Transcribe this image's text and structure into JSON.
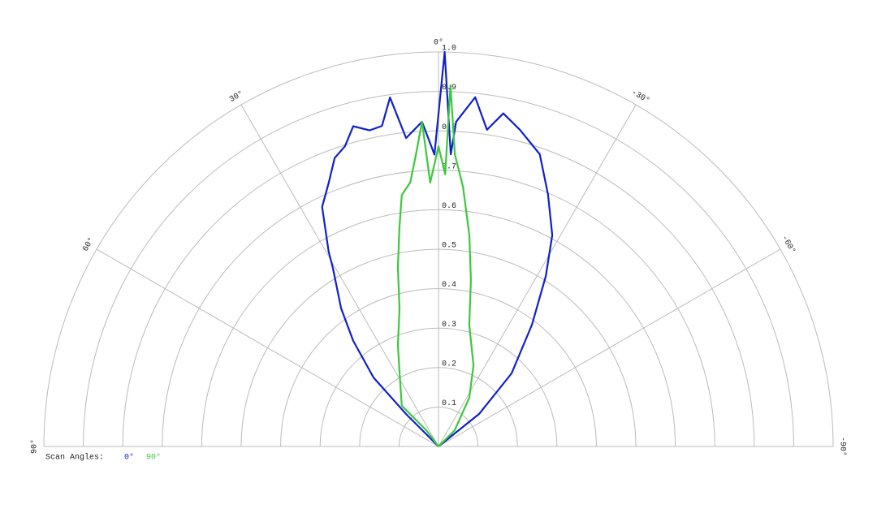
{
  "chart_data": {
    "type": "polar",
    "legend_title": "Scan Angles:",
    "rlim": [
      0,
      1
    ],
    "rticks": [
      0.1,
      0.2,
      0.3,
      0.4,
      0.5,
      0.6,
      0.7,
      0.8,
      0.9,
      {
        "value": 1,
        "label": "1.0"
      }
    ],
    "thetalim": [
      90,
      -90
    ],
    "thetaticks": [
      {
        "value": 90,
        "label": "90°"
      },
      {
        "value": 60,
        "label": "60°"
      },
      {
        "value": 30,
        "label": "30°"
      },
      {
        "value": 0,
        "label": "0°"
      },
      {
        "value": -30,
        "label": "-30°"
      },
      {
        "value": -60,
        "label": "-60°"
      },
      {
        "value": -90,
        "label": "-90°"
      }
    ],
    "grid": true,
    "series": [
      {
        "name": "0°",
        "color": "#1020c8",
        "theta": [
          45,
          45,
          43.3,
          38.9,
          35.2,
          30.6,
          29.4,
          25.9,
          22.6,
          19.8,
          17.3,
          14.9,
          12.3,
          10,
          7.9,
          6,
          2.9,
          0.8,
          -0.9,
          -2.4,
          -3.1,
          -6,
          -8.7,
          -11,
          -14.4,
          -19.1,
          -23.5,
          -28.3,
          -32.2,
          -37.5,
          -45,
          -51.3,
          -51.3
        ],
        "values": [
          0,
          0.116,
          0.24,
          0.344,
          0.428,
          0.526,
          0.567,
          0.675,
          0.724,
          0.777,
          0.797,
          0.84,
          0.82,
          0.825,
          0.893,
          0.786,
          0.824,
          0.74,
          1.0,
          0.741,
          0.824,
          0.89,
          0.812,
          0.86,
          0.829,
          0.784,
          0.696,
          0.608,
          0.51,
          0.389,
          0.262,
          0.132,
          0
        ]
      },
      {
        "name": "90°",
        "color": "#3cc83c",
        "theta": [
          36.9,
          36.9,
          42,
          28,
          21.8,
          15.8,
          12.8,
          10.1,
          8.3,
          6.1,
          4.4,
          2.9,
          1.8,
          0,
          -1.4,
          -1.9,
          -3.2,
          -5.4,
          -8.3,
          -11,
          -14.2,
          -23.3,
          -32.3,
          -45,
          -45
        ],
        "values": [
          0,
          0.05,
          0.139,
          0.21,
          0.277,
          0.363,
          0.464,
          0.564,
          0.644,
          0.673,
          0.743,
          0.824,
          0.669,
          0.761,
          0.69,
          0.916,
          0.742,
          0.661,
          0.541,
          0.43,
          0.318,
          0.224,
          0.146,
          0.058,
          0
        ]
      }
    ]
  }
}
